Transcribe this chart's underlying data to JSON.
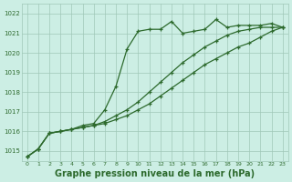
{
  "hours": [
    0,
    1,
    2,
    3,
    4,
    5,
    6,
    7,
    8,
    9,
    10,
    11,
    12,
    13,
    14,
    15,
    16,
    17,
    18,
    19,
    20,
    21,
    22,
    23
  ],
  "line_zigzag": [
    1014.7,
    1015.1,
    1015.9,
    1016.0,
    1016.1,
    1016.3,
    1016.4,
    1017.1,
    1018.3,
    1020.2,
    1021.1,
    1021.2,
    1021.2,
    1021.6,
    1021.0,
    1021.1,
    1021.2,
    1021.7,
    1021.3,
    1021.4,
    1021.4,
    1021.4,
    1021.5,
    1021.3
  ],
  "line_low": [
    1014.7,
    1015.1,
    1015.9,
    1016.0,
    1016.1,
    1016.2,
    1016.3,
    1016.4,
    1016.6,
    1016.8,
    1017.1,
    1017.4,
    1017.8,
    1018.2,
    1018.6,
    1019.0,
    1019.4,
    1019.7,
    1020.0,
    1020.3,
    1020.5,
    1020.8,
    1021.1,
    1021.3
  ],
  "line_mid": [
    1014.7,
    1015.1,
    1015.9,
    1016.0,
    1016.1,
    1016.2,
    1016.3,
    1016.5,
    1016.8,
    1017.1,
    1017.5,
    1018.0,
    1018.5,
    1019.0,
    1019.5,
    1019.9,
    1020.3,
    1020.6,
    1020.9,
    1021.1,
    1021.2,
    1021.3,
    1021.3,
    1021.3
  ],
  "line_color": "#2d6a2d",
  "bg_color": "#cceee4",
  "grid_color": "#a0c8b8",
  "title": "Graphe pression niveau de la mer (hPa)",
  "ylim_min": 1014.5,
  "ylim_max": 1022.5,
  "yticks": [
    1015,
    1016,
    1017,
    1018,
    1019,
    1020,
    1021,
    1022
  ],
  "title_fontsize": 7,
  "marker": "+"
}
